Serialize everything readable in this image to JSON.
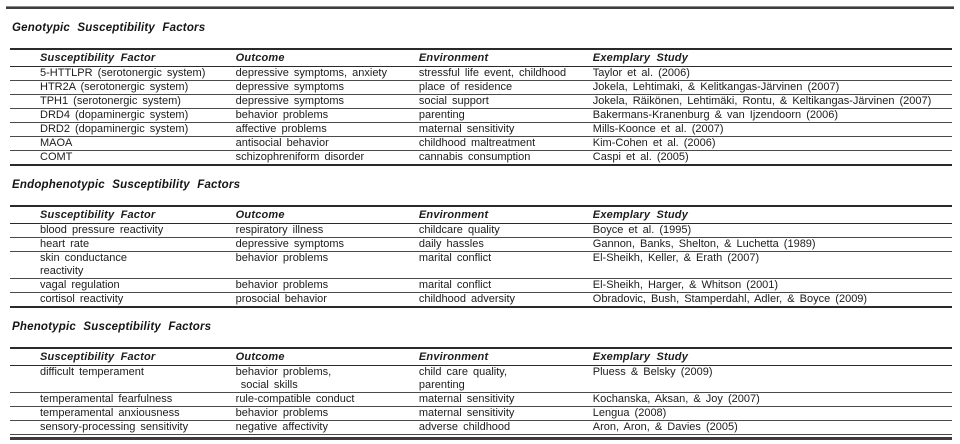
{
  "sections": [
    {
      "title": "Genotypic Susceptibility Factors",
      "columns": [
        "Susceptibility Factor",
        "Outcome",
        "Environment",
        "Exemplary Study"
      ],
      "rows": [
        [
          "5-HTTLPR (serotonergic system)",
          "depressive symptoms, anxiety",
          "stressful life event, childhood",
          "Taylor et al. (2006)"
        ],
        [
          "HTR2A (serotonergic system)",
          "depressive symptoms",
          "place of residence",
          "Jokela, Lehtimaki, & Kelitkangas-Järvinen (2007)"
        ],
        [
          "TPH1 (serotonergic system)",
          "depressive symptoms",
          "social support",
          "Jokela, Räikönen, Lehtimäki, Rontu, & Keltikangas-Järvinen (2007)"
        ],
        [
          "DRD4 (dopaminergic system)",
          "behavior problems",
          "parenting",
          "Bakermans-Kranenburg & van Ijzendoorn (2006)"
        ],
        [
          "DRD2 (dopaminergic system)",
          "affective problems",
          "maternal sensitivity",
          "Mills-Koonce et al. (2007)"
        ],
        [
          "MAOA",
          "antisocial behavior",
          "childhood maltreatment",
          "Kim-Cohen et al. (2006)"
        ],
        [
          "COMT",
          "schizophreniform disorder",
          "cannabis consumption",
          "Caspi et al. (2005)"
        ]
      ]
    },
    {
      "title": "Endophenotypic Susceptibility Factors",
      "columns": [
        "Susceptibility Factor",
        "Outcome",
        "Environment",
        "Exemplary Study"
      ],
      "rows": [
        [
          "blood pressure reactivity",
          "respiratory illness",
          "childcare quality",
          "Boyce et al. (1995)"
        ],
        [
          "heart rate",
          "depressive symptoms",
          "daily hassles",
          "Gannon, Banks, Shelton, & Luchetta (1989)"
        ],
        [
          "skin conductance\nreactivity",
          "behavior problems",
          "marital conflict",
          "El-Sheikh, Keller, & Erath (2007)"
        ],
        [
          "vagal regulation",
          "behavior problems",
          "marital conflict",
          "El-Sheikh, Harger, & Whitson (2001)"
        ],
        [
          "cortisol reactivity",
          "prosocial behavior",
          "childhood adversity",
          "Obradovic, Bush, Stamperdahl, Adler, & Boyce (2009)"
        ]
      ]
    },
    {
      "title": "Phenotypic Susceptibility Factors",
      "columns": [
        "Susceptibility Factor",
        "Outcome",
        "Environment",
        "Exemplary Study"
      ],
      "rows": [
        [
          "difficult temperament",
          "behavior problems,\n social skills",
          "child care quality,\nparenting",
          "Pluess & Belsky (2009)"
        ],
        [
          "temperamental fearfulness",
          "rule-compatible conduct",
          "maternal sensitivity",
          "Kochanska, Aksan, & Joy (2007)"
        ],
        [
          "temperamental anxiousness",
          "behavior problems",
          "maternal sensitivity",
          "Lengua (2008)"
        ],
        [
          "sensory-processing sensitivity",
          "negative affectivity",
          "adverse childhood",
          "Aron, Aron, & Davies (2005)"
        ]
      ]
    }
  ]
}
